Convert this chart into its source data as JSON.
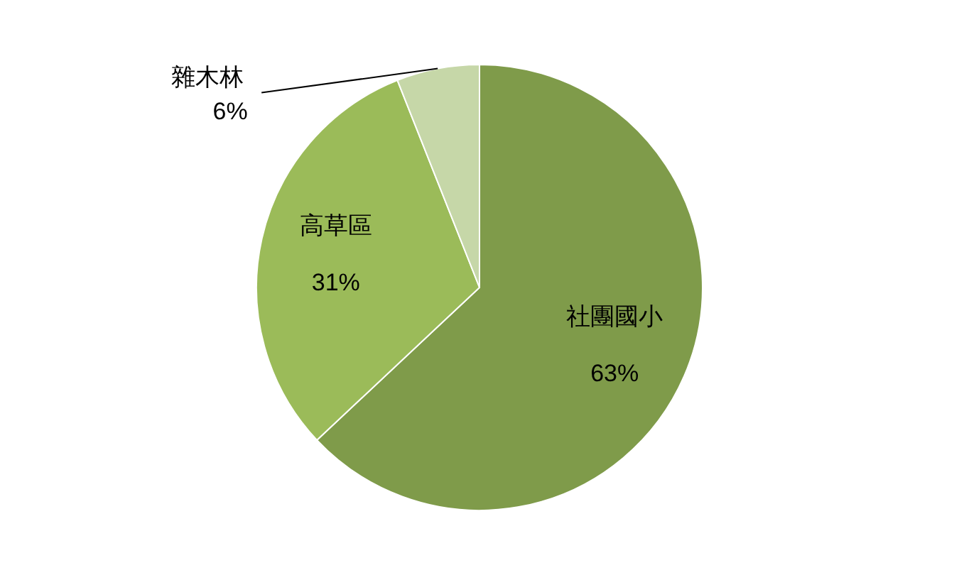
{
  "chart_data": {
    "type": "pie",
    "categories": [
      "社團國小",
      "高草區",
      "雜木林"
    ],
    "values": [
      63,
      31,
      6
    ],
    "value_labels": [
      "63%",
      "31%",
      "6%"
    ],
    "colors": [
      "#7f9b4a",
      "#9bbb59",
      "#c6d7a8"
    ],
    "legend": false
  }
}
